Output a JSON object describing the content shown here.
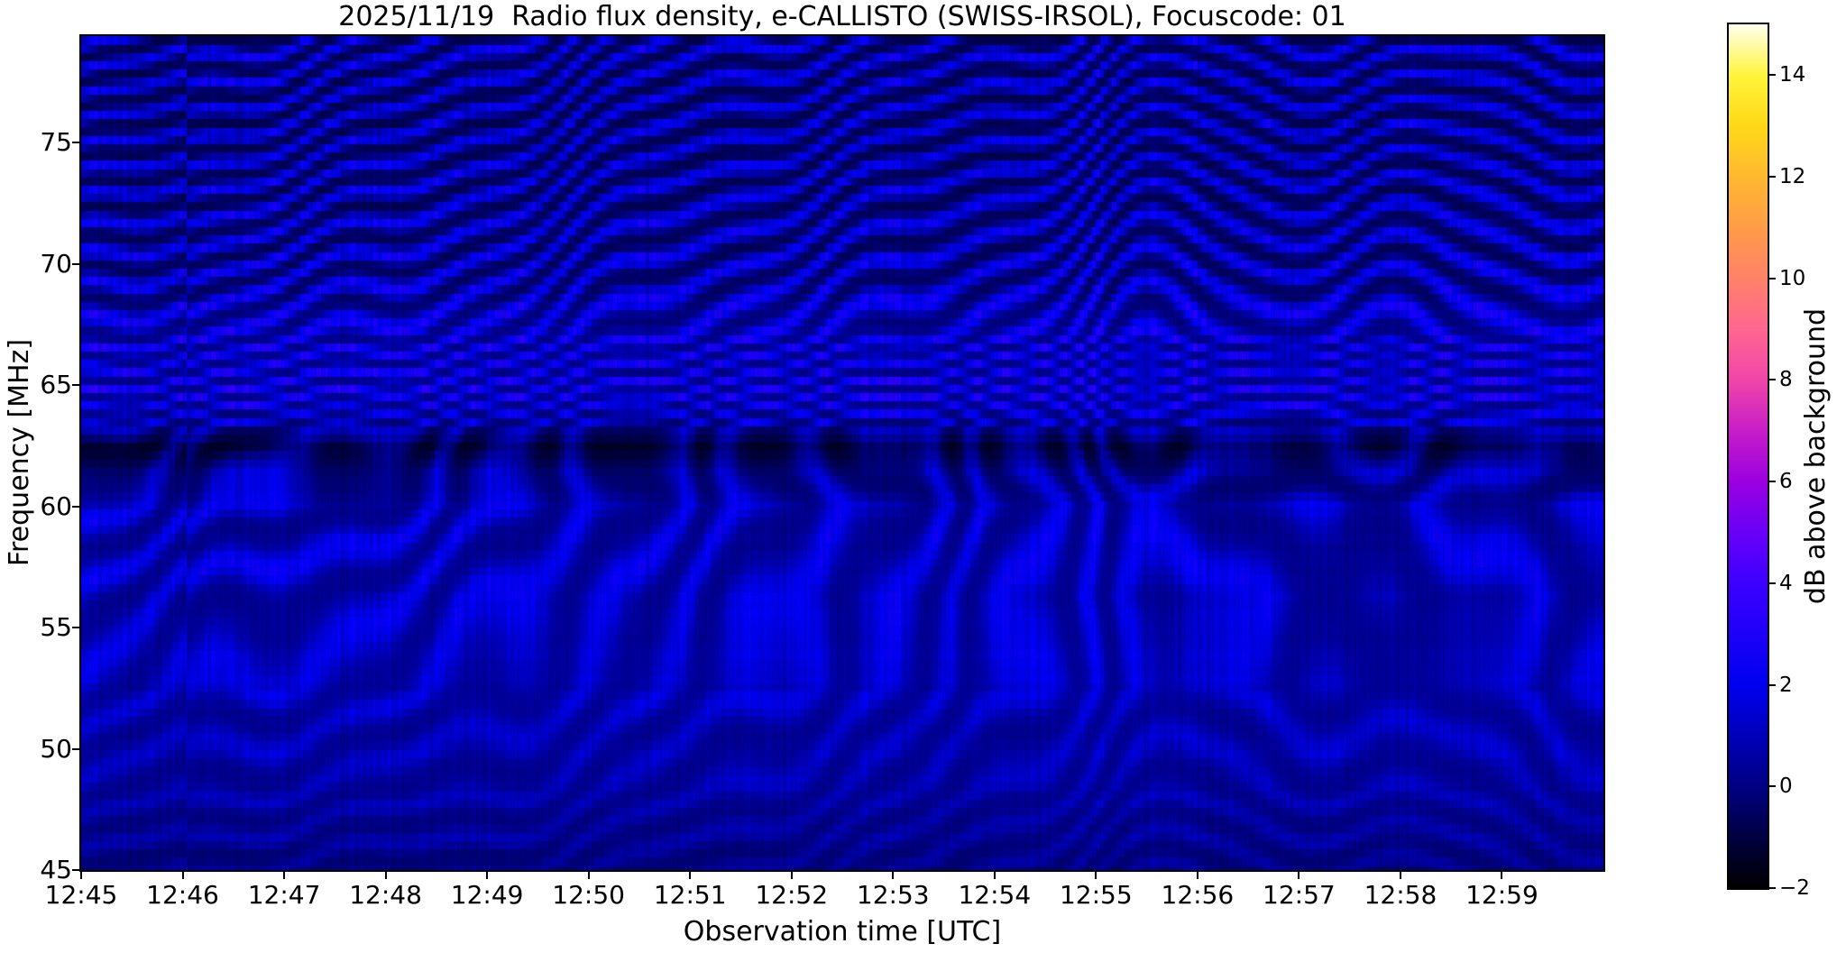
{
  "chart_data": {
    "type": "heatmap",
    "title": "2025/11/19  Radio flux density, e-CALLISTO (SWISS-IRSOL), Focuscode: 01",
    "xlabel": "Observation time [UTC]",
    "ylabel": "Frequency [MHz]",
    "x_tick_labels": [
      "12:45",
      "12:46",
      "12:47",
      "12:48",
      "12:49",
      "12:50",
      "12:51",
      "12:52",
      "12:53",
      "12:54",
      "12:55",
      "12:56",
      "12:57",
      "12:58",
      "12:59"
    ],
    "x_axis_span_minutes": 15,
    "y_tick_values": [
      75,
      70,
      65,
      60,
      55,
      50,
      45
    ],
    "y_range_mhz": [
      45,
      79.4
    ],
    "grid": false,
    "legend": "colorbar-right",
    "colorbar": {
      "label": "dB above background",
      "tick_labels": [
        "14",
        "12",
        "10",
        "8",
        "6",
        "4",
        "2",
        "0",
        "−2"
      ],
      "tick_values": [
        14,
        12,
        10,
        8,
        6,
        4,
        2,
        0,
        -2
      ],
      "value_range": [
        -2,
        15
      ],
      "colormap_stops": [
        [
          -2,
          "#000000"
        ],
        [
          0,
          "#000084"
        ],
        [
          2,
          "#0000f0"
        ],
        [
          4,
          "#3c00ff"
        ],
        [
          5,
          "#6a00f8"
        ],
        [
          6,
          "#9b00e0"
        ],
        [
          7,
          "#c81ec8"
        ],
        [
          8,
          "#f046a8"
        ],
        [
          9,
          "#ff6690"
        ],
        [
          10,
          "#ff8268"
        ],
        [
          11,
          "#ff9c48"
        ],
        [
          12,
          "#ffb830"
        ],
        [
          13,
          "#ffd818"
        ],
        [
          14,
          "#fff43c"
        ],
        [
          15,
          "#ffffee"
        ]
      ]
    },
    "content_summary": {
      "description": "Quiet solar radio spectrogram: wavy blue interference fringes of ~1-3 dB on a dark navy background; no strong radio bursts visible.",
      "features": [
        {
          "type": "fringe-pattern",
          "note": "stepped diagonal fringes rising toward later times over the left half, flattening into gentle horizontal waves on the right"
        },
        {
          "type": "chevron-peak",
          "time_utc": "~12:55:45",
          "note": "fringes bend sharply upward forming ^ shaped crests"
        },
        {
          "type": "secondary-chevron",
          "time_utc": "~12:58",
          "note": "smaller upward bend of fringes"
        },
        {
          "type": "dark-band",
          "frequency_mhz": 62.5,
          "note": "persistent dark horizontal lane with black blobs"
        },
        {
          "type": "bright-band",
          "frequency_mhz": "63.5-67",
          "note": "brightest, densest fringes"
        },
        {
          "type": "noise-floor",
          "frequency_mhz": "45-48",
          "note": "darker region with fine vertical striation noise"
        },
        {
          "type": "seam",
          "time_utc": "~12:46:02",
          "note": "subtle vertical phase discontinuity in fringes"
        }
      ],
      "typical_value_db": {
        "background": 0,
        "fringe_crests": 2.5,
        "dark_lanes": -1.5
      }
    }
  }
}
